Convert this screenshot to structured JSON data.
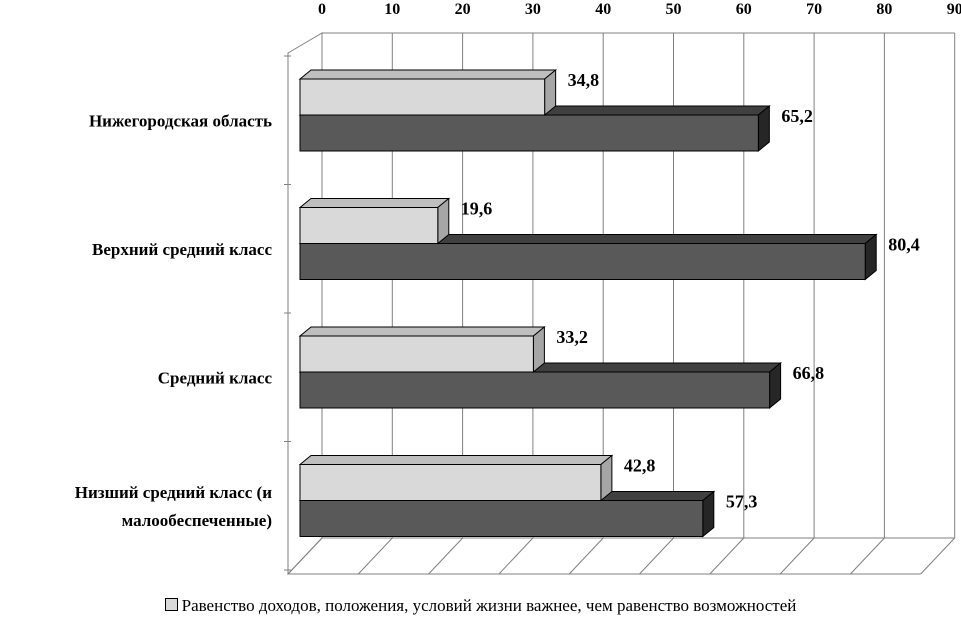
{
  "chart_data": {
    "type": "bar",
    "orientation": "horizontal",
    "style": "3d-clustered",
    "categories": [
      [
        "Нижегородская область"
      ],
      [
        "Верхний средний класс"
      ],
      [
        "Средний класс"
      ],
      [
        "Низший средний класс (и",
        "малообеспеченные)"
      ]
    ],
    "series": [
      {
        "name": "Равенство доходов, положения, условий жизни важнее, чем равенство возможностей",
        "color": "#d9d9d9",
        "values": [
          34.8,
          19.6,
          33.2,
          42.8
        ],
        "labels": [
          "34,8",
          "19,6",
          "33,2",
          "42,8"
        ]
      },
      {
        "color": "#595959",
        "values": [
          65.2,
          80.4,
          66.8,
          57.3
        ],
        "labels": [
          "65,2",
          "80,4",
          "66,8",
          "57,3"
        ]
      }
    ],
    "xlim": [
      0,
      90
    ],
    "xticks": [
      0,
      10,
      20,
      30,
      40,
      50,
      60,
      70,
      80,
      90
    ],
    "x_axis_position": "top",
    "grid": true,
    "legend_position": "bottom"
  }
}
